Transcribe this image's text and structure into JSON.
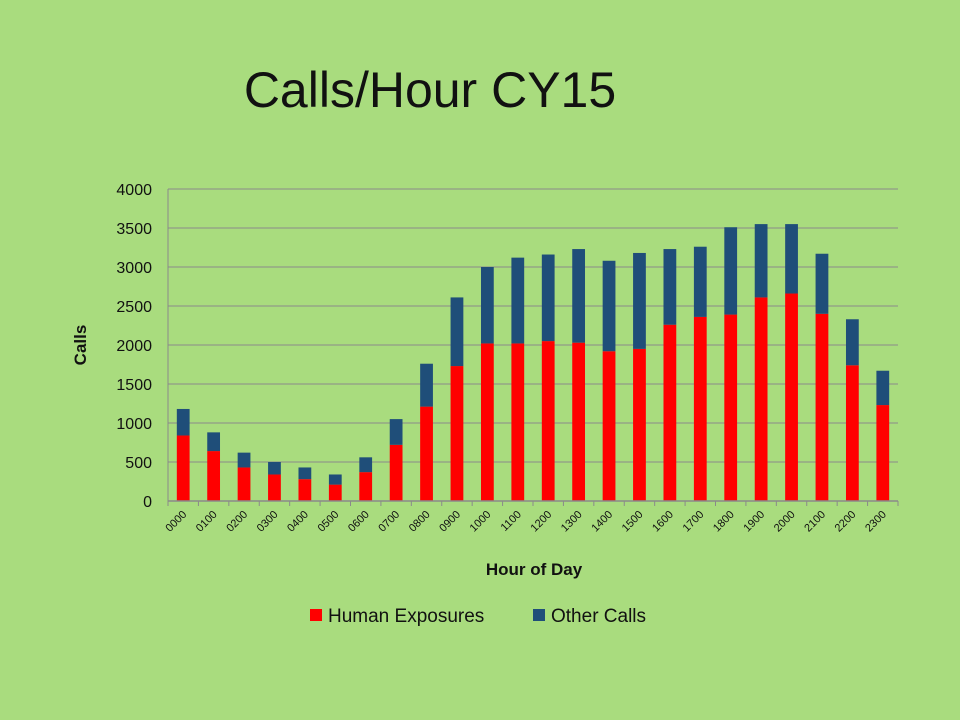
{
  "colors": {
    "background": "#a9dc7e",
    "gridline": "#8a8a8a",
    "series_human": "#ff0000",
    "series_other": "#1f4e79"
  },
  "chart_data": {
    "type": "bar",
    "stacked": true,
    "title": "Calls/Hour CY15",
    "xlabel": "Hour of Day",
    "ylabel": "Calls",
    "ylim": [
      0,
      4000
    ],
    "yticks": [
      0,
      500,
      1000,
      1500,
      2000,
      2500,
      3000,
      3500,
      4000
    ],
    "grid": true,
    "legend_position": "bottom",
    "categories": [
      "0000",
      "0100",
      "0200",
      "0300",
      "0400",
      "0500",
      "0600",
      "0700",
      "0800",
      "0900",
      "1000",
      "1100",
      "1200",
      "1300",
      "1400",
      "1500",
      "1600",
      "1700",
      "1800",
      "1900",
      "2000",
      "2100",
      "2200",
      "2300"
    ],
    "series": [
      {
        "name": "Human Exposures",
        "color": "#ff0000",
        "values": [
          840,
          640,
          430,
          340,
          280,
          210,
          370,
          720,
          1210,
          1730,
          2020,
          2020,
          2050,
          2030,
          1920,
          1950,
          2260,
          2360,
          2390,
          2610,
          2660,
          2400,
          1740,
          1230
        ]
      },
      {
        "name": "Other Calls",
        "color": "#1f4e79",
        "values": [
          340,
          240,
          190,
          160,
          150,
          130,
          190,
          330,
          550,
          880,
          980,
          1100,
          1110,
          1200,
          1160,
          1230,
          970,
          900,
          1120,
          940,
          890,
          770,
          590,
          440
        ]
      }
    ]
  }
}
